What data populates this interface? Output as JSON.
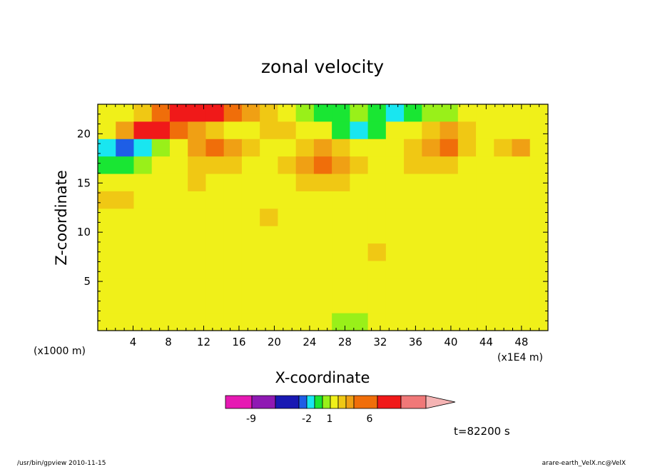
{
  "chart_data": {
    "type": "heatmap",
    "title": "zonal velocity",
    "xlabel": "X-coordinate",
    "ylabel": "Z-coordinate",
    "x_unit_left": "(x1000 m)",
    "x_unit_right": "(x1E4 m)",
    "xlim": [
      0,
      51
    ],
    "ylim": [
      0,
      23
    ],
    "xticks": [
      "4",
      "8",
      "12",
      "16",
      "20",
      "24",
      "28",
      "32",
      "36",
      "40",
      "44",
      "48"
    ],
    "yticks": [
      "5",
      "10",
      "15",
      "20"
    ],
    "colorbar": {
      "colors": [
        "#e619b3",
        "#8f19b3",
        "#1919b3",
        "#1e5ee6",
        "#19e6f0",
        "#19e633",
        "#99f019",
        "#f0f019",
        "#f0c814",
        "#f0a014",
        "#f06e0a",
        "#f01919",
        "#f07878",
        "#f5b4b4"
      ],
      "tick_labels": [
        "-9",
        "-2",
        "1",
        "6"
      ]
    },
    "field": [
      [
        0.5,
        0.8,
        1.5,
        3.5,
        5.5,
        5.5,
        4.5,
        3.5,
        2.5,
        1.5,
        0.5,
        -0.8,
        -1.5,
        -1.2,
        -0.8,
        -1.2,
        -2.5,
        -1.5,
        -0.8,
        -0.5,
        0.5,
        0.8,
        0.6,
        0.5,
        0.8
      ],
      [
        0.8,
        2.5,
        4.5,
        5.0,
        3.5,
        2.0,
        1.0,
        0.5,
        0.5,
        1.2,
        1.5,
        0.8,
        0.5,
        -1.5,
        -2.5,
        -1.2,
        0.5,
        0.8,
        1.2,
        2.5,
        1.5,
        0.5,
        0.8,
        0.5,
        0.8
      ],
      [
        -2.5,
        -4.0,
        -2.5,
        -1.0,
        0.5,
        2.5,
        3.5,
        2.5,
        1.5,
        0.5,
        0.5,
        1.5,
        2.5,
        1.5,
        0.8,
        0.5,
        0.8,
        1.8,
        2.5,
        3.0,
        1.5,
        0.5,
        1.2,
        2.5,
        0.8
      ],
      [
        -1.2,
        -1.5,
        -1.0,
        0.5,
        0.8,
        1.5,
        1.8,
        1.2,
        0.8,
        0.8,
        1.5,
        2.5,
        3.5,
        2.5,
        1.5,
        0.8,
        0.8,
        1.2,
        1.5,
        1.2,
        0.8,
        0.5,
        0.8,
        0.8,
        0.8
      ],
      [
        0.5,
        0.8,
        0.8,
        0.8,
        0.8,
        1.0,
        0.8,
        0.8,
        0.8,
        0.8,
        0.8,
        1.0,
        1.5,
        1.2,
        0.8,
        0.5,
        0.5,
        0.5,
        0.5,
        0.8,
        0.8,
        0.5,
        0.5,
        0.5,
        0.8
      ],
      [
        1.2,
        1.0,
        0.8,
        0.5,
        0.8,
        0.8,
        0.5,
        0.8,
        0.8,
        0.8,
        0.8,
        0.5,
        0.5,
        0.8,
        0.8,
        0.8,
        0.5,
        0.5,
        0.5,
        0.5,
        0.5,
        0.8,
        0.8,
        0.5,
        0.8
      ],
      [
        0.8,
        0.8,
        0.5,
        0.5,
        0.5,
        0.8,
        0.5,
        0.8,
        0.8,
        1.2,
        0.8,
        0.8,
        0.5,
        0.8,
        0.8,
        0.8,
        0.8,
        0.8,
        0.5,
        0.5,
        0.5,
        0.8,
        0.8,
        0.8,
        0.8
      ],
      [
        0.5,
        0.5,
        0.5,
        0.5,
        0.5,
        0.8,
        0.5,
        0.5,
        0.8,
        0.8,
        0.8,
        0.8,
        0.5,
        0.5,
        0.8,
        0.8,
        0.8,
        0.8,
        0.8,
        0.8,
        0.5,
        0.5,
        0.8,
        0.5,
        0.5
      ],
      [
        0.5,
        0.5,
        0.5,
        0.5,
        0.8,
        0.8,
        0.5,
        0.5,
        0.5,
        0.8,
        0.8,
        0.8,
        0.8,
        0.8,
        0.8,
        1.2,
        0.8,
        0.8,
        0.8,
        0.8,
        0.5,
        0.5,
        0.5,
        0.8,
        0.8
      ],
      [
        0.5,
        0.5,
        0.5,
        0.5,
        0.8,
        0.5,
        0.5,
        0.5,
        0.5,
        0.8,
        0.8,
        0.8,
        0.8,
        0.8,
        0.8,
        0.8,
        0.8,
        0.8,
        0.8,
        0.5,
        0.5,
        0.5,
        0.5,
        0.8,
        0.8
      ],
      [
        0.8,
        0.5,
        0.5,
        0.5,
        0.8,
        0.5,
        0.5,
        0.5,
        0.5,
        0.5,
        0.8,
        0.8,
        0.8,
        0.8,
        0.5,
        0.5,
        0.8,
        0.5,
        0.5,
        0.5,
        0.8,
        0.8,
        0.5,
        0.8,
        0.8
      ],
      [
        0.8,
        0.8,
        0.8,
        0.8,
        0.8,
        0.8,
        0.5,
        0.5,
        0.5,
        0.5,
        0.8,
        0.8,
        0.8,
        0.8,
        0.5,
        0.5,
        0.8,
        0.8,
        0.8,
        0.8,
        0.8,
        0.8,
        0.8,
        0.8,
        0.8
      ],
      [
        0.8,
        0.8,
        0.8,
        0.8,
        0.8,
        0.8,
        0.8,
        0.5,
        0.5,
        0.5,
        0.8,
        0.8,
        0.8,
        -0.8,
        -0.5,
        0.5,
        0.8,
        0.8,
        0.8,
        0.8,
        0.8,
        0.8,
        0.8,
        0.8,
        0.8
      ]
    ],
    "time_label": "t=82200 s"
  },
  "footer": {
    "left": "/usr/bin/gpview   2010-11-15",
    "right": "arare-earth_VelX.nc@VelX"
  }
}
